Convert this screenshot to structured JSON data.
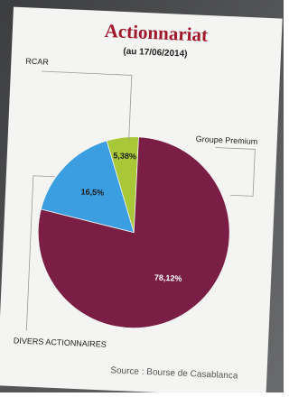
{
  "chart_data": {
    "type": "pie",
    "title": "Actionnariat",
    "subtitle": "(au 17/06/2014)",
    "categories": [
      "RCAR",
      "Groupe Premium",
      "DIVERS ACTIONNAIRES"
    ],
    "values": [
      5.38,
      78.12,
      16.5
    ],
    "value_labels": [
      "5,38%",
      "78,12%",
      "16,5%"
    ],
    "colors": [
      "#a8c838",
      "#7a1e45",
      "#3a9ee0"
    ],
    "source": "Source : Bourse de Casablanca"
  }
}
